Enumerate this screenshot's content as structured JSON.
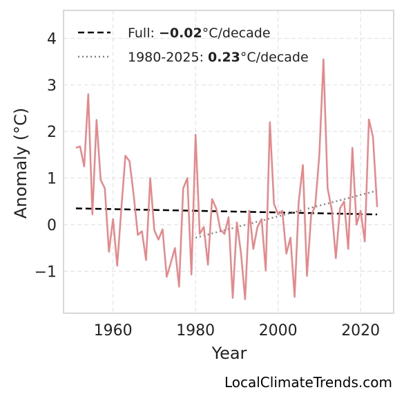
{
  "chart_data": {
    "type": "line",
    "xlabel": "Year",
    "ylabel": "Anomaly (°C)",
    "xlim": [
      1948,
      2028
    ],
    "ylim": [
      -1.9,
      4.6
    ],
    "x_ticks": [
      1960,
      1980,
      2000,
      2020
    ],
    "y_ticks": [
      -1,
      0,
      1,
      2,
      3,
      4
    ],
    "grid": true,
    "legend_placement": "top-left",
    "colors": {
      "series": "#e8878a",
      "full_trend": "#000000",
      "recent_trend": "#808080",
      "grid": "#e3e3e3",
      "frame": "#cccccc"
    },
    "series": [
      {
        "x": [
          1951,
          1952,
          1953,
          1954,
          1955,
          1956,
          1957,
          1958,
          1959,
          1960,
          1961,
          1962,
          1963,
          1964,
          1965,
          1966,
          1967,
          1968,
          1969,
          1970,
          1971,
          1972,
          1973,
          1974,
          1975,
          1976,
          1977,
          1978,
          1979,
          1980,
          1981,
          1982,
          1983,
          1984,
          1985,
          1986,
          1987,
          1988,
          1989,
          1990,
          1991,
          1992,
          1993,
          1994,
          1995,
          1996,
          1997,
          1998,
          1999,
          2000,
          2001,
          2002,
          2003,
          2004,
          2005,
          2006,
          2007,
          2008,
          2009,
          2010,
          2011,
          2012,
          2013,
          2014,
          2015,
          2016,
          2017,
          2018,
          2019,
          2020,
          2021,
          2022,
          2023,
          2024
        ],
        "values": [
          1.65,
          1.68,
          1.25,
          2.8,
          0.22,
          2.25,
          0.96,
          0.78,
          -0.58,
          0.12,
          -0.88,
          0.32,
          1.48,
          1.36,
          0.63,
          -0.22,
          -0.14,
          -0.76,
          1.0,
          -0.12,
          -0.32,
          -0.1,
          -1.12,
          -0.82,
          -0.5,
          -1.33,
          0.78,
          1.0,
          -1.07,
          1.93,
          -0.2,
          -0.05,
          -0.86,
          0.55,
          0.35,
          -0.1,
          -0.2,
          0.16,
          -1.57,
          0.05,
          -0.6,
          -1.6,
          0.3,
          -0.52,
          -0.05,
          0.12,
          -0.98,
          2.2,
          0.45,
          0.22,
          0.3,
          -0.62,
          -0.28,
          -1.55,
          0.5,
          1.28,
          -1.1,
          0.2,
          0.4,
          1.5,
          3.55,
          0.78,
          0.32,
          -0.72,
          0.35,
          0.5,
          -0.52,
          1.65,
          0.0,
          0.3,
          -0.36,
          2.26,
          1.88,
          0.38
        ]
      }
    ],
    "trends": [
      {
        "x": [
          1951,
          2024
        ],
        "y": [
          0.35,
          0.22
        ]
      },
      {
        "x": [
          1980,
          2024
        ],
        "y": [
          -0.28,
          0.73
        ]
      }
    ],
    "legend": [
      {
        "prefix": "Full: ",
        "value": "−0.02",
        "suffix": "°C/decade",
        "style": "dashed"
      },
      {
        "prefix": "1980-2025: ",
        "value": "0.23",
        "suffix": "°C/decade",
        "style": "dotted"
      }
    ]
  },
  "watermark": "LocalClimateTrends.com"
}
